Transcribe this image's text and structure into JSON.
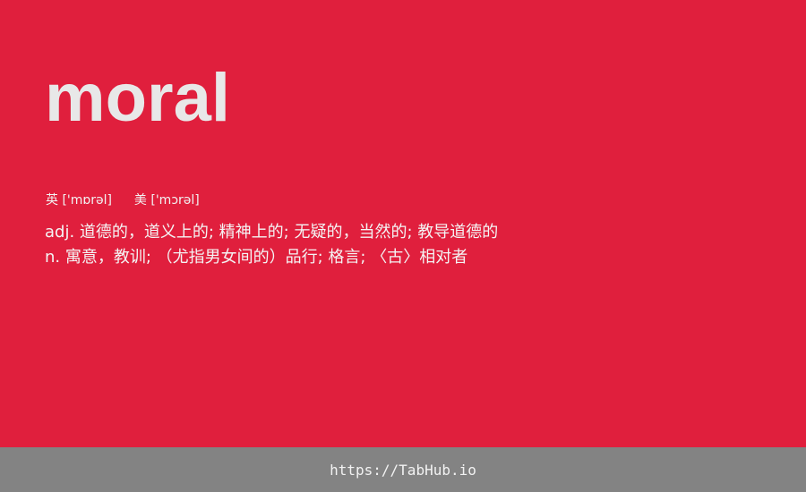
{
  "word": "moral",
  "phonetics": {
    "uk_label": "英",
    "uk_ipa": "['mɒrəl]",
    "us_label": "美",
    "us_ipa": "['mɔrəl]"
  },
  "definitions": [
    "adj. 道德的，道义上的; 精神上的; 无疑的，当然的; 教导道德的",
    "n. 寓意，教训; （尤指男女间的）品行; 格言; 〈古〉相对者"
  ],
  "footer": {
    "link": "https://TabHub.io"
  },
  "colors": {
    "background": "#e01f3d",
    "footer": "#838383",
    "word": "#e8e8e8"
  }
}
